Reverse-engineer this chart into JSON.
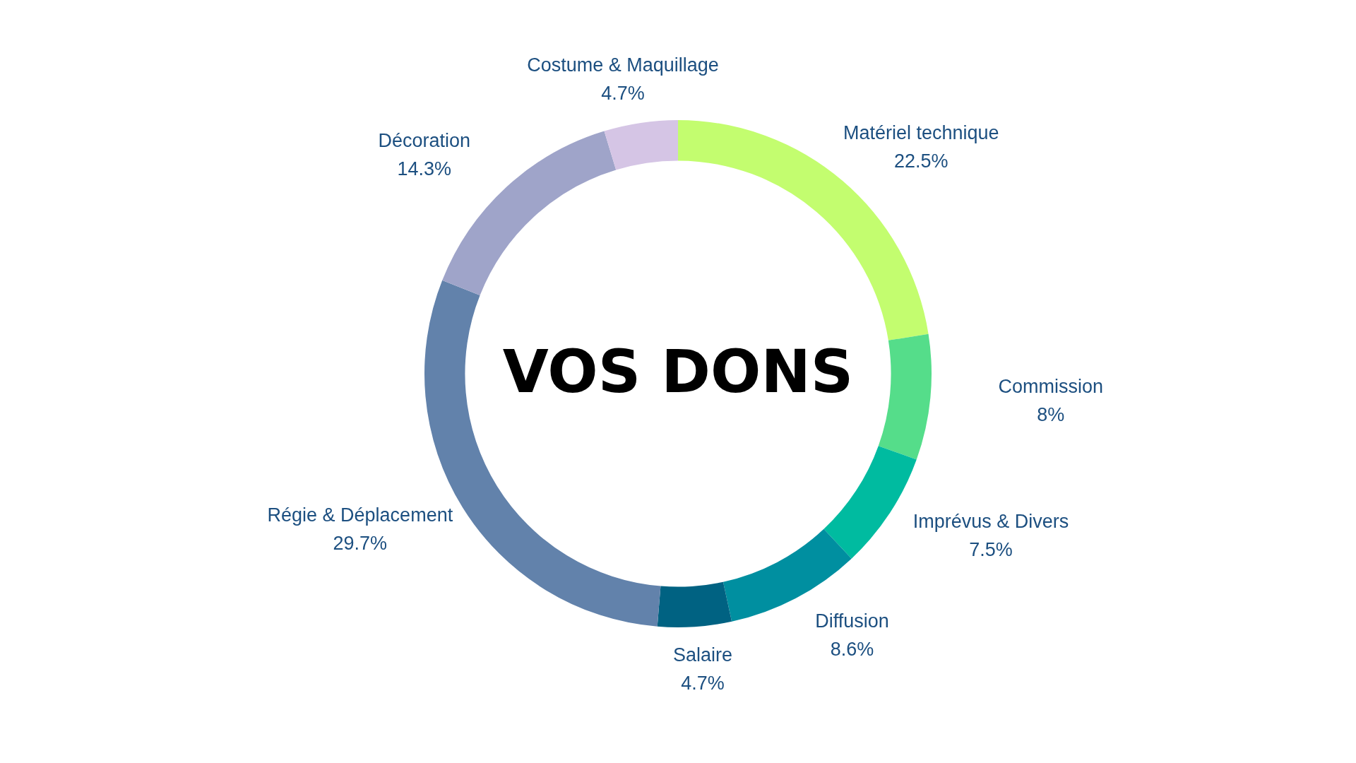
{
  "chart_data": {
    "type": "donut",
    "title": "VOS DONS",
    "categories": [
      "Matériel technique",
      "Commission",
      "Imprévus & Divers",
      "Diffusion",
      "Salaire",
      "Régie & Déplacement",
      "Décoration",
      "Costume & Maquillage"
    ],
    "values": [
      22.5,
      8,
      7.5,
      8.6,
      4.7,
      29.7,
      14.3,
      4.7
    ],
    "value_labels": [
      "22.5%",
      "8%",
      "7.5%",
      "8.6%",
      "4.7%",
      "29.7%",
      "14.3%",
      "4.7%"
    ],
    "colors": [
      "#c3fd6f",
      "#55dd8a",
      "#00bba0",
      "#008fa0",
      "#006282",
      "#6282ab",
      "#9fa4c9",
      "#d5c5e5"
    ]
  }
}
